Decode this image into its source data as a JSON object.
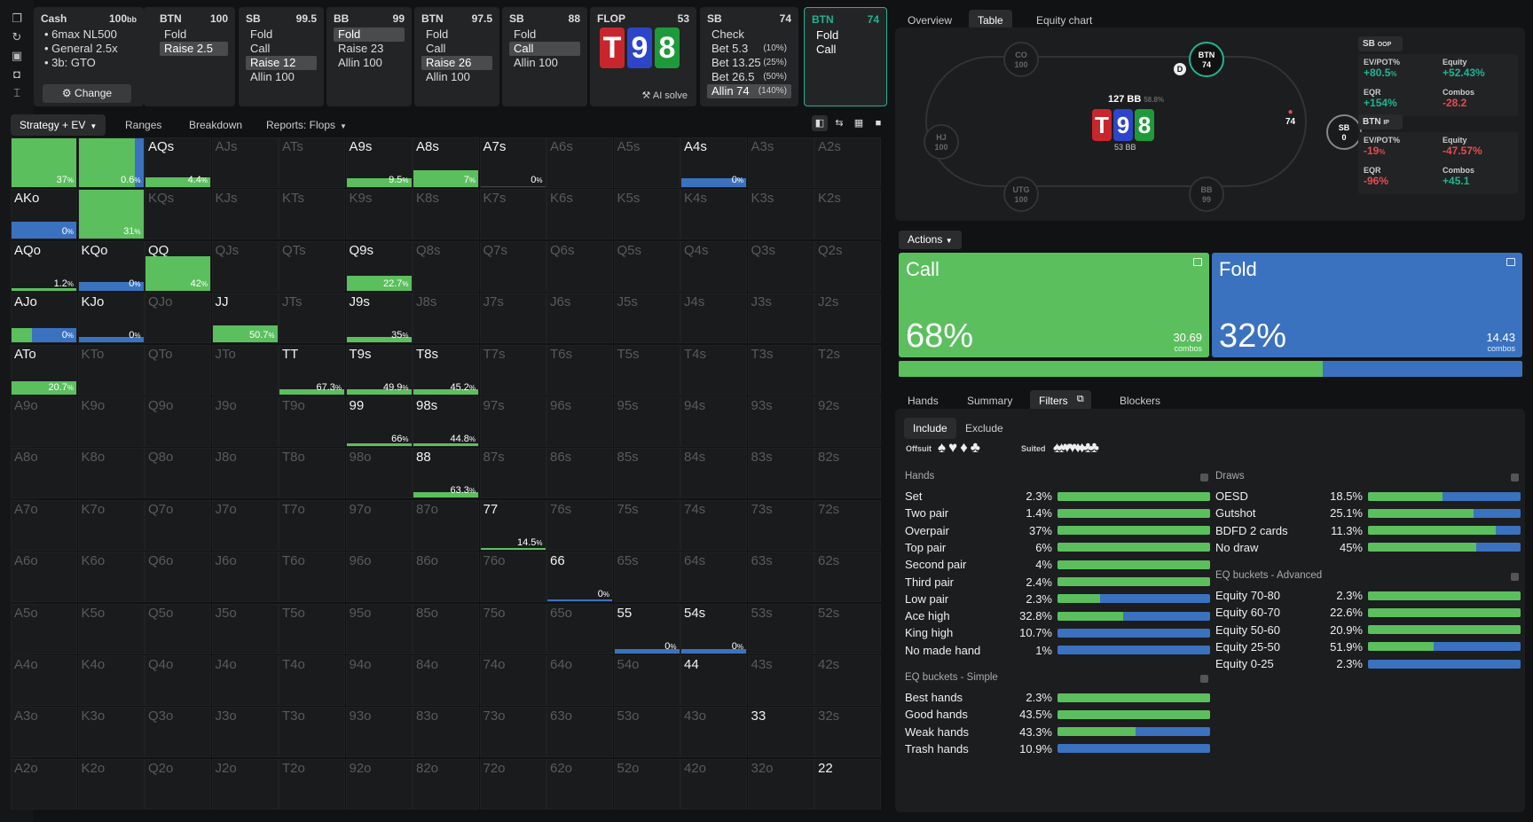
{
  "history": {
    "cash": {
      "title": "Cash",
      "stack": "100",
      "unit": "bb",
      "lines": [
        "6max NL500",
        "General 2.5x",
        "3b: GTO"
      ],
      "change": "Change"
    },
    "nodes": [
      {
        "pos": "BTN",
        "stack": "100",
        "actions": [
          {
            "l": "Fold"
          },
          {
            "l": "Raise 2.5",
            "sel": true
          }
        ]
      },
      {
        "pos": "SB",
        "stack": "99.5",
        "actions": [
          {
            "l": "Fold"
          },
          {
            "l": "Call"
          },
          {
            "l": "Raise 12",
            "sel": true
          },
          {
            "l": "Allin 100"
          }
        ]
      },
      {
        "pos": "BB",
        "stack": "99",
        "actions": [
          {
            "l": "Fold",
            "sel": true
          },
          {
            "l": "Raise 23"
          },
          {
            "l": "Allin 100"
          }
        ]
      },
      {
        "pos": "BTN",
        "stack": "97.5",
        "actions": [
          {
            "l": "Fold"
          },
          {
            "l": "Call"
          },
          {
            "l": "Raise 26",
            "sel": true
          },
          {
            "l": "Allin 100"
          }
        ]
      },
      {
        "pos": "SB",
        "stack": "88",
        "actions": [
          {
            "l": "Fold"
          },
          {
            "l": "Call",
            "sel": true
          },
          {
            "l": "Allin 100"
          }
        ]
      }
    ],
    "flop": {
      "title": "FLOP",
      "pot": "53",
      "cards": [
        "T",
        "9",
        "8"
      ],
      "ai": "AI solve"
    },
    "sbnode": {
      "pos": "SB",
      "stack": "74",
      "actions": [
        {
          "l": "Check",
          "s": ""
        },
        {
          "l": "Bet 5.3",
          "s": "(10%)"
        },
        {
          "l": "Bet 13.25",
          "s": "(25%)"
        },
        {
          "l": "Bet 26.5",
          "s": "(50%)"
        },
        {
          "l": "Allin 74",
          "s": "(140%)",
          "sel": true
        }
      ]
    },
    "btnnode": {
      "pos": "BTN",
      "stack": "74",
      "actions": [
        {
          "l": "Fold"
        },
        {
          "l": "Call"
        }
      ]
    }
  },
  "subtabs": [
    "Strategy + EV",
    "Ranges",
    "Breakdown",
    "Reports: Flops"
  ],
  "right_tabs": [
    "Overview",
    "Table",
    "Equity chart"
  ],
  "colors": {
    "green": "#5bbf5e",
    "blue": "#3b72c0",
    "teal": "#21b394",
    "red": "#e44c52"
  },
  "matrix": {
    "ranks": [
      "A",
      "K",
      "Q",
      "J",
      "T",
      "9",
      "8",
      "7",
      "6",
      "5",
      "4",
      "3",
      "2"
    ],
    "cells": {
      "AA": {
        "g": 100,
        "p": "37"
      },
      "AKs": {
        "g": 85,
        "b": 15,
        "p": "0.6"
      },
      "AQs": {
        "g": 100,
        "h": 20,
        "p": "4.4"
      },
      "A9s": {
        "g": 100,
        "h": 18,
        "p": "9.5"
      },
      "A8s": {
        "g": 100,
        "h": 33,
        "p": "7"
      },
      "A7s": {
        "p": "0",
        "h": 0
      },
      "A4s": {
        "b": 100,
        "h": 18,
        "p": "0"
      },
      "AKo": {
        "b": 100,
        "h": 33,
        "p": "0"
      },
      "KK": {
        "g": 100,
        "p": "31"
      },
      "AQo": {
        "g": 100,
        "h": 6,
        "p": "1.2"
      },
      "KQo": {
        "b": 100,
        "h": 18,
        "p": "0"
      },
      "QQ": {
        "g": 100,
        "h": 68,
        "p": "42"
      },
      "Q9s": {
        "g": 100,
        "h": 29,
        "p": "22.7"
      },
      "AJo": {
        "g": 30,
        "b": 70,
        "h": 28,
        "p": "0"
      },
      "KJo": {
        "b": 100,
        "h": 10,
        "p": "0"
      },
      "JJ": {
        "g": 100,
        "h": 33,
        "p": "50.7"
      },
      "J9s": {
        "g": 100,
        "h": 10,
        "p": "35"
      },
      "ATo": {
        "g": 100,
        "h": 26,
        "p": "20.7"
      },
      "TT": {
        "g": 100,
        "h": 10,
        "p": "67.3"
      },
      "T9s": {
        "g": 100,
        "h": 10,
        "p": "49.9"
      },
      "T8s": {
        "g": 100,
        "h": 10,
        "p": "45.2"
      },
      "99": {
        "g": 100,
        "h": 6,
        "p": "66"
      },
      "98s": {
        "g": 100,
        "h": 6,
        "p": "44.8"
      },
      "88": {
        "g": 100,
        "h": 10,
        "p": "63.3"
      },
      "77": {
        "g": 100,
        "h": 4,
        "p": "14.5"
      },
      "66": {
        "b": 100,
        "h": 4,
        "p": "0"
      },
      "55": {
        "b": 100,
        "h": 8,
        "p": "0"
      },
      "54s": {
        "b": 100,
        "h": 8,
        "p": "0"
      },
      "44": {},
      "33": {},
      "22": {}
    }
  },
  "table": {
    "pot": "127 BB",
    "potpct": "58.8%",
    "board_under": "53 BB",
    "cards": [
      "T",
      "9",
      "8"
    ],
    "seats": [
      {
        "id": "CO",
        "st": "100"
      },
      {
        "id": "BTN",
        "st": "74"
      },
      {
        "id": "HJ",
        "st": "100"
      },
      {
        "id": "SB",
        "st": "0"
      },
      {
        "id": "UTG",
        "st": "100"
      },
      {
        "id": "BB",
        "st": "99"
      }
    ],
    "sb_bet": "74",
    "dealer": "D"
  },
  "stats": {
    "sb": {
      "label": "SB",
      "tag": "OOP",
      "evpot": "80.5",
      "equity": "52.43%",
      "eqr": "154%",
      "combos": "28.2"
    },
    "btn": {
      "label": "BTN",
      "tag": "IP",
      "evpot": "19",
      "equity": "47.57%",
      "eqr": "96%",
      "combos": "45.1"
    },
    "keys": {
      "evpot": "EV/POT%",
      "equity": "Equity",
      "eqr": "EQR",
      "combos": "Combos"
    }
  },
  "actions": {
    "label": "Actions",
    "call": {
      "name": "Call",
      "pct": "68%",
      "combos": "30.69",
      "unit": "combos",
      "frac": 0.68
    },
    "fold": {
      "name": "Fold",
      "pct": "32%",
      "combos": "14.43",
      "unit": "combos"
    }
  },
  "filters": {
    "tabs": [
      "Hands",
      "Summary",
      "Filters",
      "Blockers"
    ],
    "incl": "Include",
    "excl": "Exclude",
    "offsuit": "Offsuit",
    "suited": "Suited",
    "hands_title": "Hands",
    "hands": [
      [
        "Set",
        "2.3%",
        100
      ],
      [
        "Two pair",
        "1.4%",
        100
      ],
      [
        "Overpair",
        "37%",
        100
      ],
      [
        "Top pair",
        "6%",
        100
      ],
      [
        "Second pair",
        "4%",
        100
      ],
      [
        "Third pair",
        "2.4%",
        100
      ],
      [
        "Low pair",
        "2.3%",
        28
      ],
      [
        "Ace high",
        "32.8%",
        43
      ],
      [
        "King high",
        "10.7%",
        0
      ],
      [
        "No made hand",
        "1%",
        0
      ]
    ],
    "eqs_title": "EQ buckets - Simple",
    "eqs": [
      [
        "Best hands",
        "2.3%",
        100
      ],
      [
        "Good hands",
        "43.5%",
        100
      ],
      [
        "Weak hands",
        "43.3%",
        51
      ],
      [
        "Trash hands",
        "10.9%",
        0
      ]
    ],
    "draws_title": "Draws",
    "draws": [
      [
        "OESD",
        "18.5%",
        49
      ],
      [
        "Gutshot",
        "25.1%",
        69
      ],
      [
        "BDFD 2 cards",
        "11.3%",
        84
      ],
      [
        "No draw",
        "45%",
        71
      ]
    ],
    "eqa_title": "EQ buckets - Advanced",
    "eqa": [
      [
        "Equity 70-80",
        "2.3%",
        100
      ],
      [
        "Equity 60-70",
        "22.6%",
        100
      ],
      [
        "Equity 50-60",
        "20.9%",
        100
      ],
      [
        "Equity 25-50",
        "51.9%",
        43
      ],
      [
        "Equity 0-25",
        "2.3%",
        0
      ]
    ]
  }
}
